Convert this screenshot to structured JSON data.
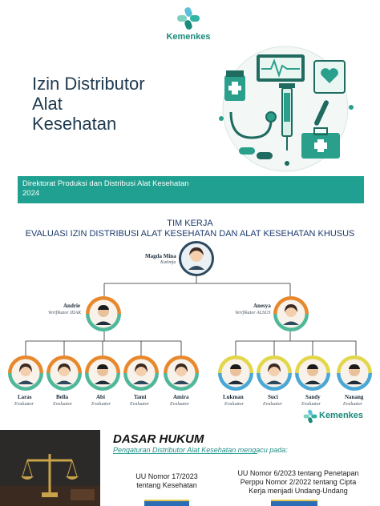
{
  "brand": {
    "name": "Kemenkes",
    "accent": "#20a090",
    "navy": "#1e3a50"
  },
  "cover": {
    "title_lines": [
      "Izin Distributor",
      "Alat",
      "Kesehatan"
    ],
    "banner_lines": [
      "Direktorat Produksi dan Distribusi Alat Kesehatan",
      "2024"
    ],
    "illustration": "medical-equipment-icons"
  },
  "org": {
    "heading_lines": [
      "TIM KERJA",
      "EVALUASI IZIN DISTRIBUSI ALAT KESEHATAN DAN ALAT KESEHATAN KHUSUS"
    ],
    "head": {
      "name": "Magda Mina",
      "role": "Katimja"
    },
    "verifiers": [
      {
        "name": "Andrie",
        "role": "Verifikator IDAK",
        "ring": "#e8882c"
      },
      {
        "name": "Anesya",
        "role": "Verifikator ALSUS",
        "ring": "#4fb89a"
      }
    ],
    "evaluators_left": [
      {
        "name": "Laras",
        "role": "Evaluator"
      },
      {
        "name": "Bella",
        "role": "Evaluator"
      },
      {
        "name": "Abi",
        "role": "Evaluator"
      },
      {
        "name": "Tami",
        "role": "Evaluator"
      },
      {
        "name": "Amira",
        "role": "Evaluator"
      }
    ],
    "evaluators_right": [
      {
        "name": "Lukman",
        "role": "Evaluator"
      },
      {
        "name": "Suci",
        "role": "Evaluator"
      },
      {
        "name": "Sandy",
        "role": "Evaluator"
      },
      {
        "name": "Nanang",
        "role": "Evaluator"
      }
    ],
    "logo_text": "Kemenkes"
  },
  "dasar_hukum": {
    "title": "DASAR HUKUM",
    "subtitle": "Pengaturan Distributor Alat Kesehatan mengacu pada:",
    "law1_lines": [
      "UU Nomor 17/2023",
      "tentang Kesehatan"
    ],
    "law2_lines": [
      "UU Nomor 6/2023 tentang Penetapan",
      "Perppu Nomor 2/2022 tentang Cipta",
      "Kerja menjadi Undang-Undang"
    ]
  }
}
